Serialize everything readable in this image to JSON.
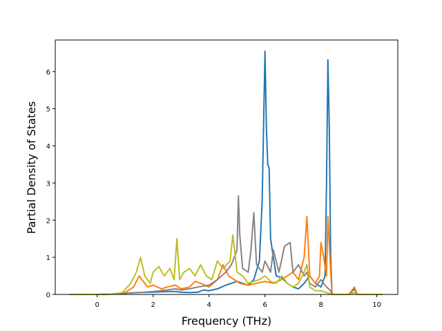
{
  "chart_data": {
    "type": "line",
    "title": "",
    "xlabel": "Frequency (THz)",
    "ylabel": "Partial Density of States",
    "xlim": [
      -1.5,
      10.75
    ],
    "ylim": [
      0,
      6.85
    ],
    "xticks": [
      0,
      2,
      4,
      6,
      8,
      10
    ],
    "yticks": [
      0,
      1,
      2,
      3,
      4,
      5,
      6
    ],
    "grid": false,
    "legend": "none",
    "series": [
      {
        "color": "#1f77b4",
        "points": [
          [
            -1.0,
            0
          ],
          [
            0.0,
            0
          ],
          [
            0.5,
            0.01
          ],
          [
            1.0,
            0.03
          ],
          [
            1.4,
            0.05
          ],
          [
            2.0,
            0.06
          ],
          [
            2.5,
            0.08
          ],
          [
            2.8,
            0.08
          ],
          [
            3.0,
            0.06
          ],
          [
            3.3,
            0.05
          ],
          [
            3.6,
            0.06
          ],
          [
            3.8,
            0.12
          ],
          [
            4.0,
            0.1
          ],
          [
            4.3,
            0.15
          ],
          [
            4.6,
            0.25
          ],
          [
            4.8,
            0.3
          ],
          [
            5.0,
            0.35
          ],
          [
            5.2,
            0.3
          ],
          [
            5.4,
            0.25
          ],
          [
            5.6,
            0.4
          ],
          [
            5.8,
            0.9
          ],
          [
            5.9,
            2.5
          ],
          [
            5.95,
            4.5
          ],
          [
            6.0,
            6.55
          ],
          [
            6.05,
            4.5
          ],
          [
            6.1,
            3.5
          ],
          [
            6.15,
            3.4
          ],
          [
            6.2,
            1.5
          ],
          [
            6.4,
            0.5
          ],
          [
            6.6,
            0.45
          ],
          [
            6.8,
            0.3
          ],
          [
            7.0,
            0.2
          ],
          [
            7.2,
            0.15
          ],
          [
            7.4,
            0.3
          ],
          [
            7.6,
            0.5
          ],
          [
            7.8,
            0.3
          ],
          [
            8.0,
            0.2
          ],
          [
            8.15,
            0.5
          ],
          [
            8.2,
            3.0
          ],
          [
            8.25,
            6.32
          ],
          [
            8.3,
            4.5
          ],
          [
            8.35,
            1.0
          ],
          [
            8.4,
            0.0
          ],
          [
            9.0,
            0.0
          ],
          [
            9.2,
            0.15
          ],
          [
            9.3,
            0.0
          ],
          [
            10.2,
            0
          ]
        ]
      },
      {
        "color": "#ff7f0e",
        "points": [
          [
            -1.0,
            0
          ],
          [
            0.0,
            0
          ],
          [
            0.5,
            0.01
          ],
          [
            1.0,
            0.05
          ],
          [
            1.3,
            0.2
          ],
          [
            1.5,
            0.5
          ],
          [
            1.6,
            0.4
          ],
          [
            1.8,
            0.2
          ],
          [
            2.0,
            0.25
          ],
          [
            2.3,
            0.15
          ],
          [
            2.5,
            0.2
          ],
          [
            2.8,
            0.25
          ],
          [
            3.0,
            0.15
          ],
          [
            3.3,
            0.2
          ],
          [
            3.5,
            0.35
          ],
          [
            3.7,
            0.3
          ],
          [
            4.0,
            0.2
          ],
          [
            4.3,
            0.4
          ],
          [
            4.5,
            0.8
          ],
          [
            4.7,
            0.5
          ],
          [
            4.9,
            0.4
          ],
          [
            5.1,
            0.3
          ],
          [
            5.4,
            0.25
          ],
          [
            5.7,
            0.3
          ],
          [
            6.0,
            0.35
          ],
          [
            6.3,
            0.3
          ],
          [
            6.6,
            0.4
          ],
          [
            6.8,
            0.5
          ],
          [
            7.0,
            0.6
          ],
          [
            7.2,
            0.4
          ],
          [
            7.4,
            1.0
          ],
          [
            7.5,
            2.1
          ],
          [
            7.6,
            0.5
          ],
          [
            7.8,
            0.3
          ],
          [
            7.95,
            0.5
          ],
          [
            8.0,
            1.4
          ],
          [
            8.1,
            1.0
          ],
          [
            8.2,
            0.5
          ],
          [
            8.25,
            2.1
          ],
          [
            8.35,
            0.6
          ],
          [
            8.4,
            0.0
          ],
          [
            9.0,
            0.0
          ],
          [
            9.2,
            0.2
          ],
          [
            9.3,
            0.0
          ],
          [
            10.2,
            0
          ]
        ]
      },
      {
        "color": "#8c8080",
        "points": [
          [
            -1.0,
            0
          ],
          [
            0.0,
            0
          ],
          [
            0.5,
            0.01
          ],
          [
            1.0,
            0.03
          ],
          [
            1.5,
            0.05
          ],
          [
            2.0,
            0.08
          ],
          [
            2.5,
            0.12
          ],
          [
            2.8,
            0.15
          ],
          [
            3.0,
            0.12
          ],
          [
            3.3,
            0.15
          ],
          [
            3.6,
            0.2
          ],
          [
            4.0,
            0.25
          ],
          [
            4.3,
            0.4
          ],
          [
            4.6,
            0.6
          ],
          [
            4.8,
            0.8
          ],
          [
            5.0,
            1.2
          ],
          [
            5.05,
            2.65
          ],
          [
            5.1,
            1.6
          ],
          [
            5.2,
            0.7
          ],
          [
            5.4,
            0.6
          ],
          [
            5.5,
            1.2
          ],
          [
            5.6,
            2.2
          ],
          [
            5.7,
            0.8
          ],
          [
            5.9,
            0.6
          ],
          [
            6.0,
            0.9
          ],
          [
            6.2,
            0.6
          ],
          [
            6.3,
            1.2
          ],
          [
            6.5,
            0.6
          ],
          [
            6.7,
            1.3
          ],
          [
            6.9,
            1.4
          ],
          [
            7.0,
            0.6
          ],
          [
            7.2,
            0.8
          ],
          [
            7.4,
            0.5
          ],
          [
            7.5,
            0.6
          ],
          [
            7.6,
            0.3
          ],
          [
            7.8,
            0.2
          ],
          [
            8.0,
            0.4
          ],
          [
            8.2,
            0.2
          ],
          [
            8.35,
            0.1
          ],
          [
            8.4,
            0.0
          ],
          [
            9.0,
            0.0
          ],
          [
            9.2,
            0.05
          ],
          [
            9.3,
            0.0
          ],
          [
            10.2,
            0
          ]
        ]
      },
      {
        "color": "#bcbd22",
        "points": [
          [
            -1.0,
            0
          ],
          [
            0.0,
            0
          ],
          [
            0.5,
            0.01
          ],
          [
            0.9,
            0.05
          ],
          [
            1.2,
            0.3
          ],
          [
            1.4,
            0.6
          ],
          [
            1.55,
            1.0
          ],
          [
            1.7,
            0.5
          ],
          [
            1.9,
            0.3
          ],
          [
            2.0,
            0.6
          ],
          [
            2.2,
            0.75
          ],
          [
            2.4,
            0.5
          ],
          [
            2.6,
            0.7
          ],
          [
            2.75,
            0.4
          ],
          [
            2.85,
            1.5
          ],
          [
            2.95,
            0.4
          ],
          [
            3.1,
            0.6
          ],
          [
            3.3,
            0.7
          ],
          [
            3.5,
            0.5
          ],
          [
            3.7,
            0.8
          ],
          [
            3.9,
            0.5
          ],
          [
            4.1,
            0.4
          ],
          [
            4.3,
            0.9
          ],
          [
            4.5,
            0.7
          ],
          [
            4.75,
            0.9
          ],
          [
            4.85,
            1.6
          ],
          [
            5.0,
            0.6
          ],
          [
            5.2,
            0.5
          ],
          [
            5.4,
            0.3
          ],
          [
            5.6,
            0.35
          ],
          [
            5.8,
            0.4
          ],
          [
            6.0,
            0.5
          ],
          [
            6.2,
            0.35
          ],
          [
            6.4,
            0.3
          ],
          [
            6.6,
            0.5
          ],
          [
            6.8,
            0.3
          ],
          [
            7.0,
            0.2
          ],
          [
            7.2,
            0.3
          ],
          [
            7.4,
            0.6
          ],
          [
            7.5,
            0.8
          ],
          [
            7.6,
            0.2
          ],
          [
            7.8,
            0.1
          ],
          [
            8.0,
            0.1
          ],
          [
            8.2,
            0.05
          ],
          [
            8.4,
            0.0
          ],
          [
            9.0,
            0.0
          ],
          [
            9.2,
            0.05
          ],
          [
            9.3,
            0.0
          ],
          [
            10.2,
            0
          ]
        ]
      }
    ]
  }
}
